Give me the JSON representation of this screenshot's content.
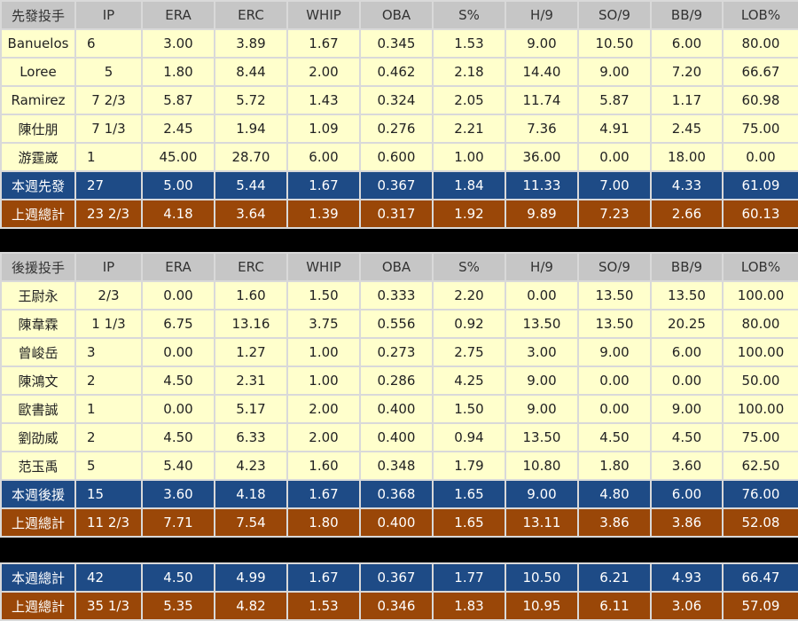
{
  "columns": [
    "IP",
    "ERA",
    "ERC",
    "WHIP",
    "OBA",
    "S%",
    "H/9",
    "SO/9",
    "BB/9",
    "LOB%"
  ],
  "starters": {
    "title": "先發投手",
    "rows": [
      [
        "Banuelos",
        "6",
        "3.00",
        "3.89",
        "1.67",
        "0.345",
        "1.53",
        "9.00",
        "10.50",
        "6.00",
        "80.00"
      ],
      [
        "Loree",
        "5",
        "1.80",
        "8.44",
        "2.00",
        "0.462",
        "2.18",
        "14.40",
        "9.00",
        "7.20",
        "66.67"
      ],
      [
        "Ramirez",
        "7 2/3",
        "5.87",
        "5.72",
        "1.43",
        "0.324",
        "2.05",
        "11.74",
        "5.87",
        "1.17",
        "60.98"
      ],
      [
        "陳仕朋",
        "7 1/3",
        "2.45",
        "1.94",
        "1.09",
        "0.276",
        "2.21",
        "7.36",
        "4.91",
        "2.45",
        "75.00"
      ],
      [
        "游霆崴",
        "1",
        "45.00",
        "28.70",
        "6.00",
        "0.600",
        "1.00",
        "36.00",
        "0.00",
        "18.00",
        "0.00"
      ]
    ],
    "this_week": [
      "本週先發",
      "27",
      "5.00",
      "5.44",
      "1.67",
      "0.367",
      "1.84",
      "11.33",
      "7.00",
      "4.33",
      "61.09"
    ],
    "last_week": [
      "上週總計",
      "23 2/3",
      "4.18",
      "3.64",
      "1.39",
      "0.317",
      "1.92",
      "9.89",
      "7.23",
      "2.66",
      "60.13"
    ]
  },
  "relievers": {
    "title": "後援投手",
    "rows": [
      [
        "王尉永",
        "2/3",
        "0.00",
        "1.60",
        "1.50",
        "0.333",
        "2.20",
        "0.00",
        "13.50",
        "13.50",
        "100.00"
      ],
      [
        "陳韋霖",
        "1 1/3",
        "6.75",
        "13.16",
        "3.75",
        "0.556",
        "0.92",
        "13.50",
        "13.50",
        "20.25",
        "80.00"
      ],
      [
        "曾峻岳",
        "3",
        "0.00",
        "1.27",
        "1.00",
        "0.273",
        "2.75",
        "3.00",
        "9.00",
        "6.00",
        "100.00"
      ],
      [
        "陳鴻文",
        "2",
        "4.50",
        "2.31",
        "1.00",
        "0.286",
        "4.25",
        "9.00",
        "0.00",
        "0.00",
        "50.00"
      ],
      [
        "歐書誠",
        "1",
        "0.00",
        "5.17",
        "2.00",
        "0.400",
        "1.50",
        "9.00",
        "0.00",
        "9.00",
        "100.00"
      ],
      [
        "劉劭威",
        "2",
        "4.50",
        "6.33",
        "2.00",
        "0.400",
        "0.94",
        "13.50",
        "4.50",
        "4.50",
        "75.00"
      ],
      [
        "范玉禹",
        "5",
        "5.40",
        "4.23",
        "1.60",
        "0.348",
        "1.79",
        "10.80",
        "1.80",
        "3.60",
        "62.50"
      ]
    ],
    "this_week": [
      "本週後援",
      "15",
      "3.60",
      "4.18",
      "1.67",
      "0.368",
      "1.65",
      "9.00",
      "4.80",
      "6.00",
      "76.00"
    ],
    "last_week": [
      "上週總計",
      "11 2/3",
      "7.71",
      "7.54",
      "1.80",
      "0.400",
      "1.65",
      "13.11",
      "3.86",
      "3.86",
      "52.08"
    ]
  },
  "totals": {
    "this_week": [
      "本週總計",
      "42",
      "4.50",
      "4.99",
      "1.67",
      "0.367",
      "1.77",
      "10.50",
      "6.21",
      "4.93",
      "66.47"
    ],
    "last_week": [
      "上週總計",
      "35 1/3",
      "5.35",
      "4.82",
      "1.53",
      "0.346",
      "1.83",
      "10.95",
      "6.11",
      "3.06",
      "57.09"
    ]
  },
  "colors": {
    "header": "#c6c6c6",
    "row": "#ffffcc",
    "this_week": "#1e4b86",
    "last_week": "#9a4708"
  }
}
